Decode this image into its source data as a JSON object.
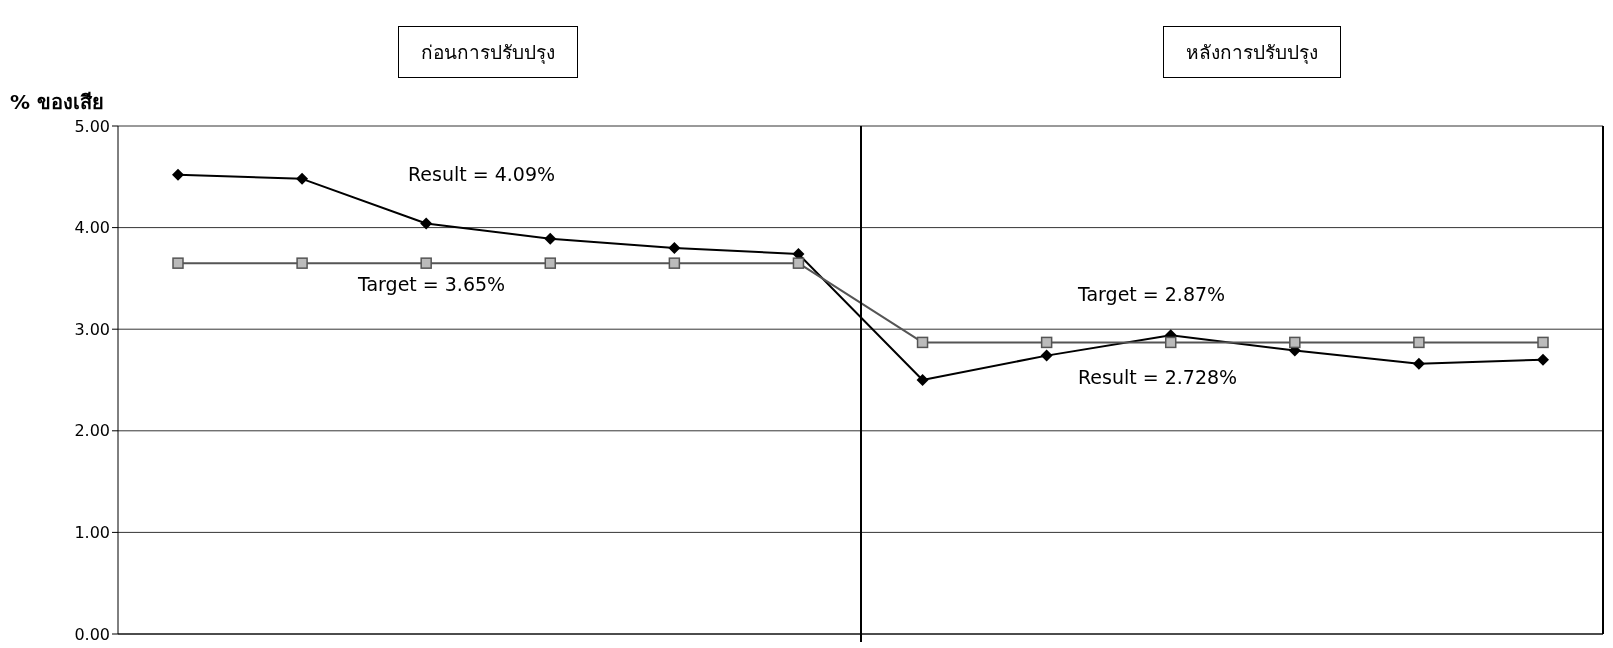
{
  "chart_data": {
    "type": "line",
    "ylabel": "% ของเสีย",
    "categories": [
      null,
      null,
      null,
      null,
      null,
      null,
      null,
      null,
      null,
      null,
      null,
      null
    ],
    "series": [
      {
        "color": "#000000",
        "marker": "diamond",
        "values": [
          4.52,
          4.48,
          4.04,
          3.89,
          3.8,
          3.74,
          2.5,
          2.74,
          2.94,
          2.79,
          2.66,
          2.7
        ]
      },
      {
        "color": "#555555",
        "marker": "square",
        "values": [
          3.65,
          3.65,
          3.65,
          3.65,
          3.65,
          3.65,
          2.87,
          2.87,
          2.87,
          2.87,
          2.87,
          2.87
        ]
      }
    ],
    "ylim": [
      0,
      5
    ],
    "yticks": [
      {
        "value": 0,
        "label": "0.00"
      },
      {
        "value": 1,
        "label": "1.00"
      },
      {
        "value": 2,
        "label": "2.00"
      },
      {
        "value": 3,
        "label": "3.00"
      },
      {
        "value": 4,
        "label": "4.00"
      },
      {
        "value": 5,
        "label": "5.00"
      }
    ],
    "grid": "y",
    "legend": false,
    "tick_labels": "y",
    "annotations": [
      "ก่อนการปรับปรุง",
      "หลังการปรับปรุง",
      "Result = 4.09%",
      "Target = 3.65%",
      "Target = 2.87%",
      "Result = 2.728%"
    ]
  }
}
